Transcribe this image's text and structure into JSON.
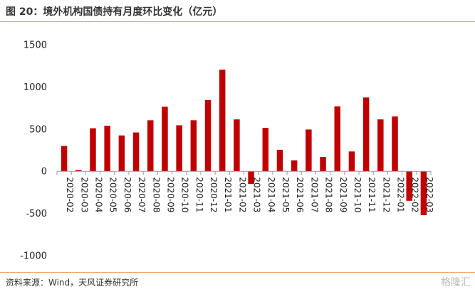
{
  "header": {
    "title": "图 20：境外机构国债持有月度环比变化（亿元）"
  },
  "footer": {
    "source": "资料来源：Wind，天风证券研究所",
    "watermark": "格隆汇"
  },
  "colors": {
    "bar": "#c00000",
    "axis": "#999999",
    "rule": "#e8a35c"
  },
  "chart_data": {
    "type": "bar",
    "categories": [
      "2020-02",
      "2020-03",
      "2020-04",
      "2020-05",
      "2020-06",
      "2020-07",
      "2020-08",
      "2020-09",
      "2020-10",
      "2020-11",
      "2020-12",
      "2021-01",
      "2021-02",
      "2021-03",
      "2021-04",
      "2021-05",
      "2021-06",
      "2021-07",
      "2021-08",
      "2021-09",
      "2021-10",
      "2021-11",
      "2021-12",
      "2022-01",
      "2022-02",
      "2022-03"
    ],
    "values": [
      300,
      15,
      510,
      540,
      425,
      460,
      605,
      765,
      545,
      605,
      845,
      1205,
      615,
      -150,
      515,
      255,
      130,
      495,
      170,
      770,
      235,
      875,
      615,
      650,
      -350,
      -520
    ],
    "yticks": [
      -1000,
      -500,
      0,
      500,
      1000,
      1500
    ],
    "ylim": [
      -1000,
      1500
    ],
    "grid": false,
    "legend": "none"
  }
}
